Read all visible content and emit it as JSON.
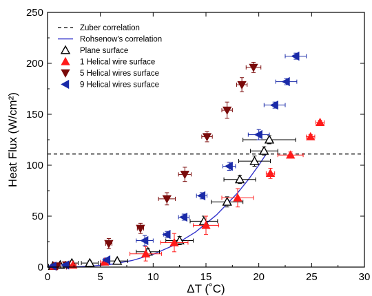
{
  "chart_data": {
    "type": "scatter",
    "xlabel": "ΔT (˚C)",
    "ylabel": "Heat Flux (W/cm²)",
    "xlim": [
      0,
      30
    ],
    "ylim": [
      0,
      250
    ],
    "xticks": [
      0,
      5,
      10,
      15,
      20,
      25,
      30
    ],
    "yticks": [
      0,
      50,
      100,
      150,
      200,
      250
    ],
    "grid": false,
    "legend_position": "top-left",
    "series": [
      {
        "name": "Zuber correlation",
        "kind": "hline",
        "y": 111,
        "color": "#000000",
        "dash": true
      },
      {
        "name": "Rohsenow's correlation",
        "kind": "curve",
        "color": "#3333cc",
        "points": [
          [
            0,
            0
          ],
          [
            2,
            0.1
          ],
          [
            4,
            0.8
          ],
          [
            6,
            2.7
          ],
          [
            8,
            6.4
          ],
          [
            10,
            12.5
          ],
          [
            12,
            21.6
          ],
          [
            14,
            34.3
          ],
          [
            16,
            51.2
          ],
          [
            18,
            72.9
          ],
          [
            19,
            85.7
          ],
          [
            20,
            100
          ],
          [
            20.8,
            112.5
          ]
        ]
      },
      {
        "name": "Plane surface",
        "marker": "triangle-up-open",
        "color": "#000000",
        "points": [
          {
            "x": 0.5,
            "y": 1,
            "xerr": 0.4,
            "yerr": 1
          },
          {
            "x": 1.2,
            "y": 2,
            "xerr": 0.5,
            "yerr": 1
          },
          {
            "x": 2.3,
            "y": 4,
            "xerr": 0.6,
            "yerr": 2
          },
          {
            "x": 4.0,
            "y": 4,
            "xerr": 0.8,
            "yerr": 2
          },
          {
            "x": 6.6,
            "y": 6,
            "xerr": 1.0,
            "yerr": 2
          },
          {
            "x": 9.5,
            "y": 15,
            "xerr": 1.1,
            "yerr": 3
          },
          {
            "x": 12.5,
            "y": 26,
            "xerr": 1.3,
            "yerr": 4
          },
          {
            "x": 14.8,
            "y": 45,
            "xerr": 1.3,
            "yerr": 5
          },
          {
            "x": 17.0,
            "y": 64,
            "xerr": 1.5,
            "yerr": 5
          },
          {
            "x": 18.2,
            "y": 86,
            "xerr": 1.5,
            "yerr": 4
          },
          {
            "x": 19.6,
            "y": 104,
            "xerr": 1.5,
            "yerr": 5
          },
          {
            "x": 20.5,
            "y": 114,
            "xerr": 1.3,
            "yerr": 4
          },
          {
            "x": 21.0,
            "y": 125,
            "xerr": 2.5,
            "yerr": 4
          }
        ]
      },
      {
        "name": "1 Helical wire surface",
        "marker": "triangle-up",
        "color": "#ff1a1a",
        "points": [
          {
            "x": 0.6,
            "y": 1,
            "xerr": 0.3,
            "yerr": 1
          },
          {
            "x": 2.4,
            "y": 2,
            "xerr": 0.3,
            "yerr": 1
          },
          {
            "x": 5.4,
            "y": 5,
            "xerr": 0.4,
            "yerr": 2
          },
          {
            "x": 9.3,
            "y": 13,
            "xerr": 1.5,
            "yerr": 7
          },
          {
            "x": 12.0,
            "y": 24,
            "xerr": 1.3,
            "yerr": 9
          },
          {
            "x": 15.0,
            "y": 41,
            "xerr": 1.2,
            "yerr": 9
          },
          {
            "x": 18.0,
            "y": 68,
            "xerr": 1.5,
            "yerr": 9
          },
          {
            "x": 21.1,
            "y": 92,
            "xerr": 0.4,
            "yerr": 5
          },
          {
            "x": 23.0,
            "y": 110,
            "xerr": 1.2,
            "yerr": 3
          },
          {
            "x": 24.9,
            "y": 128,
            "xerr": 0.4,
            "yerr": 2
          },
          {
            "x": 25.8,
            "y": 142,
            "xerr": 0.4,
            "yerr": 2
          }
        ]
      },
      {
        "name": "5 Helical wires surface",
        "marker": "triangle-down",
        "color": "#7a0a0a",
        "points": [
          {
            "x": 0.9,
            "y": 1,
            "xerr": 0.3,
            "yerr": 1
          },
          {
            "x": 1.8,
            "y": 2,
            "xerr": 0.3,
            "yerr": 1
          },
          {
            "x": 5.8,
            "y": 23,
            "xerr": 0.3,
            "yerr": 5
          },
          {
            "x": 8.8,
            "y": 38,
            "xerr": 0.3,
            "yerr": 5
          },
          {
            "x": 11.3,
            "y": 67,
            "xerr": 0.8,
            "yerr": 6
          },
          {
            "x": 13.0,
            "y": 91,
            "xerr": 0.6,
            "yerr": 7
          },
          {
            "x": 15.1,
            "y": 128,
            "xerr": 0.5,
            "yerr": 5
          },
          {
            "x": 17.0,
            "y": 154,
            "xerr": 0.5,
            "yerr": 8
          },
          {
            "x": 18.4,
            "y": 179,
            "xerr": 0.5,
            "yerr": 7
          },
          {
            "x": 19.5,
            "y": 196,
            "xerr": 0.7,
            "yerr": 5
          }
        ]
      },
      {
        "name": "9 Helical wires surface",
        "marker": "triangle-left",
        "color": "#1a2aa8",
        "points": [
          {
            "x": 0.5,
            "y": 1,
            "xerr": 0.2,
            "yerr": 1
          },
          {
            "x": 1.7,
            "y": 2,
            "xerr": 0.2,
            "yerr": 1
          },
          {
            "x": 5.6,
            "y": 7,
            "xerr": 0.3,
            "yerr": 2
          },
          {
            "x": 9.2,
            "y": 26,
            "xerr": 0.8,
            "yerr": 5
          },
          {
            "x": 11.3,
            "y": 32,
            "xerr": 0.3,
            "yerr": 3
          },
          {
            "x": 12.9,
            "y": 49,
            "xerr": 0.5,
            "yerr": 3
          },
          {
            "x": 14.6,
            "y": 70,
            "xerr": 0.5,
            "yerr": 3
          },
          {
            "x": 17.2,
            "y": 99,
            "xerr": 0.6,
            "yerr": 4
          },
          {
            "x": 20.0,
            "y": 130,
            "xerr": 1.0,
            "yerr": 5
          },
          {
            "x": 21.5,
            "y": 159,
            "xerr": 1.0,
            "yerr": 3
          },
          {
            "x": 22.6,
            "y": 182,
            "xerr": 1.0,
            "yerr": 3
          },
          {
            "x": 23.5,
            "y": 207,
            "xerr": 1.0,
            "yerr": 3
          }
        ]
      }
    ]
  }
}
